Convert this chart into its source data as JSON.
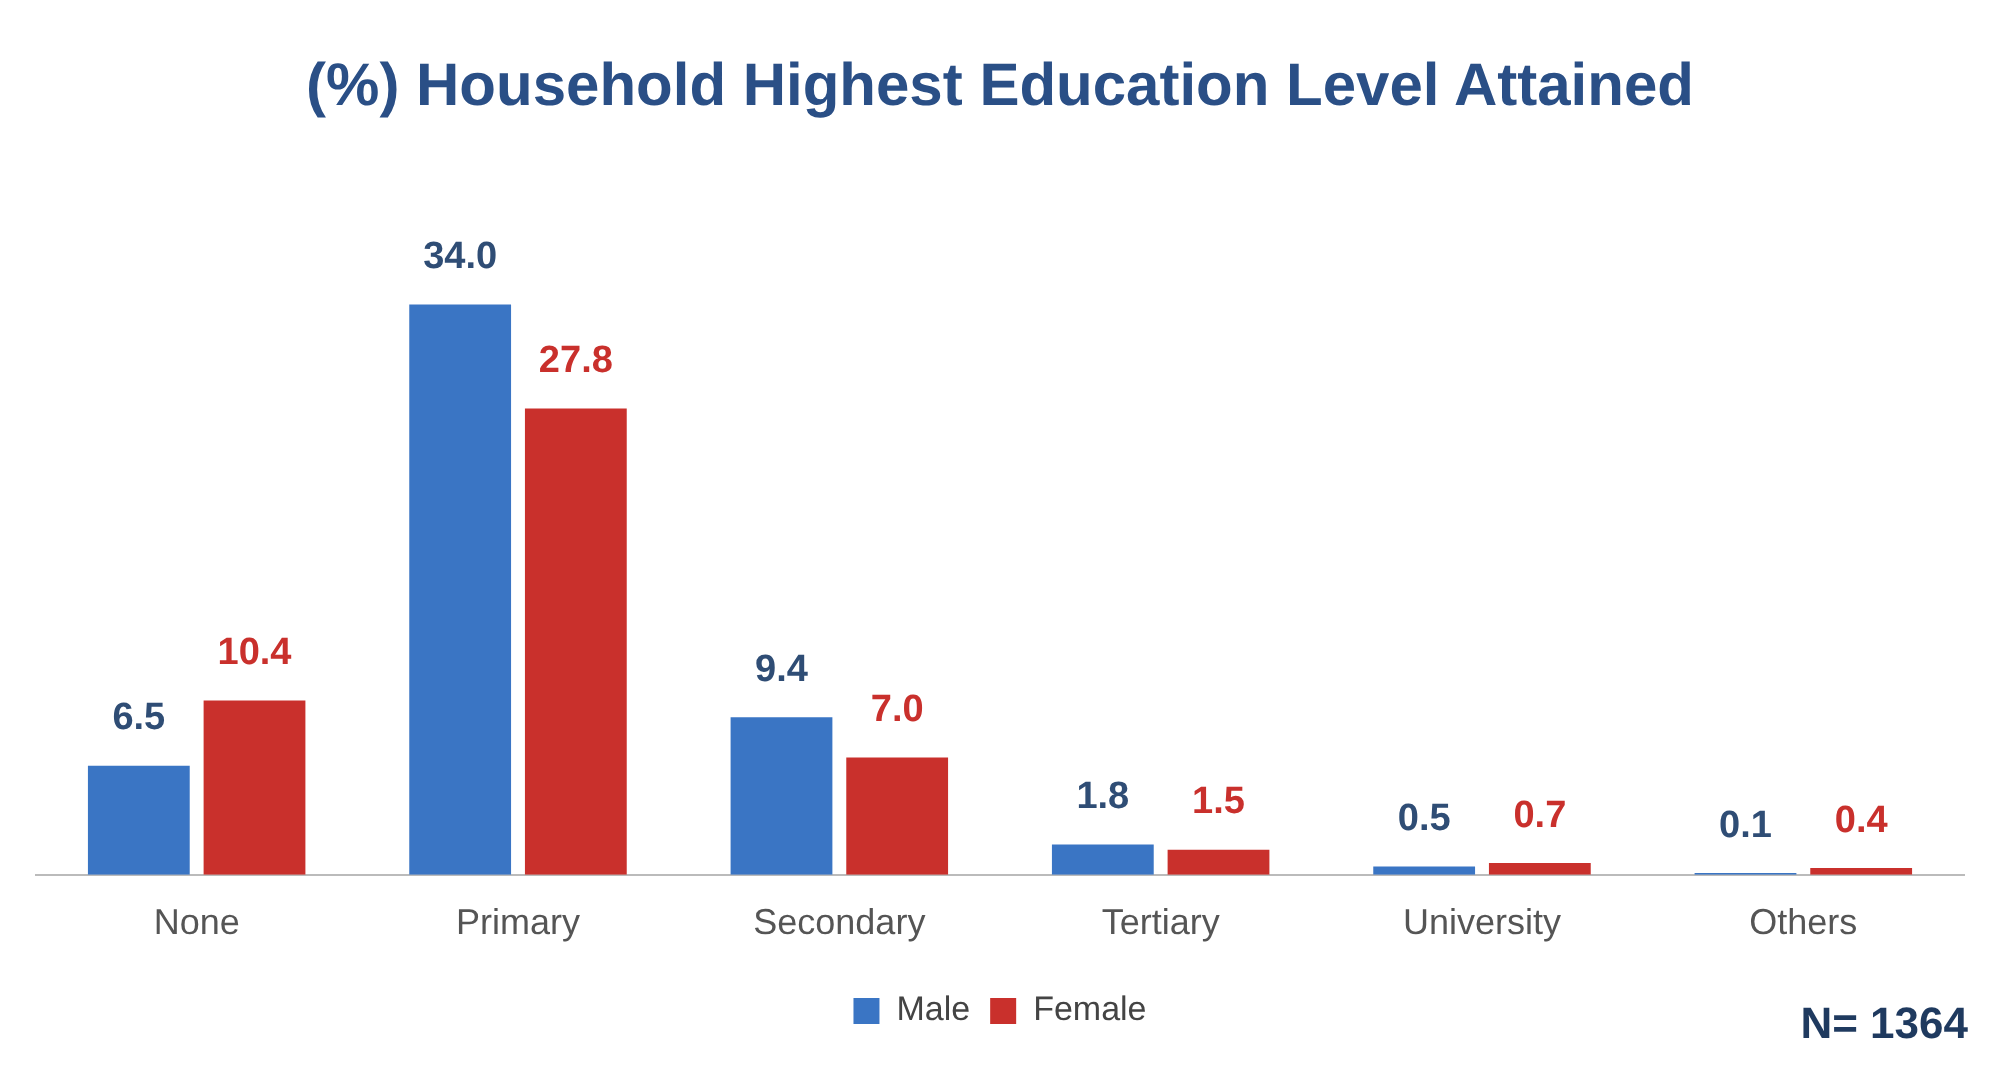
{
  "chart_data": {
    "type": "bar",
    "title": "(%) Household Highest Education Level Attained",
    "categories": [
      "None",
      "Primary",
      "Secondary",
      "Tertiary",
      "University",
      "Others"
    ],
    "series": [
      {
        "name": "Male",
        "color": "#3a75c4",
        "values": [
          6.5,
          34.0,
          9.4,
          1.8,
          0.5,
          0.1
        ],
        "value_labels": [
          "6.5",
          "34.0",
          "9.4",
          "1.8",
          "0.5",
          "0.1"
        ]
      },
      {
        "name": "Female",
        "color": "#c9302c",
        "values": [
          10.4,
          27.8,
          7.0,
          1.5,
          0.7,
          0.4
        ],
        "value_labels": [
          "10.4",
          "27.8",
          "7.0",
          "1.5",
          "0.7",
          "0.4"
        ]
      }
    ],
    "legend": "bottom",
    "grid": false,
    "tick_labels": "x",
    "annotations": [
      "N= 1364"
    ]
  }
}
